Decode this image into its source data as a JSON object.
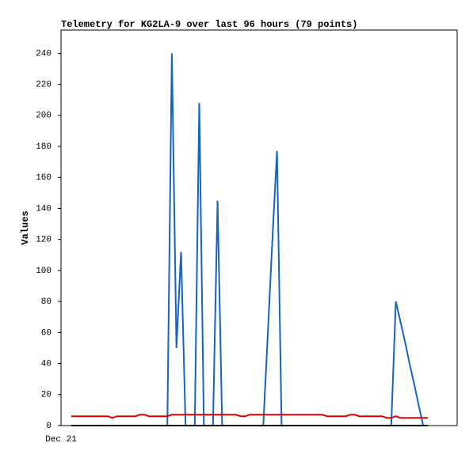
{
  "chart_data": {
    "type": "line",
    "title": "Telemetry for KG2LA-9 over last 96 hours (79 points)",
    "y_label": "Values",
    "categories": [
      "Dec 21",
      null,
      null,
      null,
      null,
      null,
      null,
      null,
      null,
      null,
      null,
      null,
      null,
      null,
      null,
      null,
      null,
      null,
      null,
      null,
      null,
      null,
      null,
      null,
      null,
      null,
      null,
      null,
      null,
      null,
      null,
      null,
      null,
      null,
      null,
      null,
      null,
      null,
      null,
      null,
      null,
      null,
      null,
      null,
      null,
      null,
      null,
      null,
      null,
      null,
      null,
      null,
      null,
      null,
      null,
      null,
      null,
      null,
      null,
      null,
      null,
      null,
      null,
      null,
      null,
      null,
      null,
      null,
      null,
      null,
      null,
      null,
      null,
      null,
      null,
      null,
      null,
      null,
      null
    ],
    "series": [
      {
        "color": "#1565c0",
        "values": [
          0,
          0,
          0,
          0,
          0,
          0,
          0,
          0,
          0,
          0,
          0,
          0,
          0,
          0,
          0,
          0,
          0,
          0,
          0,
          0,
          0,
          0,
          240,
          50,
          112,
          0,
          0,
          0,
          208,
          0,
          0,
          0,
          145,
          0,
          0,
          0,
          0,
          0,
          0,
          0,
          0,
          0,
          0,
          60,
          120,
          177,
          0,
          0,
          0,
          0,
          0,
          0,
          0,
          0,
          0,
          0,
          0,
          0,
          0,
          0,
          0,
          0,
          0,
          0,
          0,
          0,
          0,
          0,
          0,
          0,
          0,
          80,
          67,
          54,
          40,
          27,
          13,
          0,
          0
        ]
      },
      {
        "color": "#e00000",
        "values": [
          6,
          6,
          6,
          6,
          6,
          6,
          6,
          6,
          6,
          5,
          6,
          6,
          6,
          6,
          6,
          7,
          7,
          6,
          6,
          6,
          6,
          6,
          7,
          7,
          7,
          7,
          7,
          7,
          7,
          7,
          7,
          7,
          7,
          7,
          7,
          7,
          7,
          6,
          6,
          7,
          7,
          7,
          7,
          7,
          7,
          7,
          7,
          7,
          7,
          7,
          7,
          7,
          7,
          7,
          7,
          7,
          6,
          6,
          6,
          6,
          6,
          7,
          7,
          6,
          6,
          6,
          6,
          6,
          6,
          5,
          5,
          6,
          5,
          5,
          5,
          5,
          5,
          5,
          5
        ]
      },
      {
        "color": "#000000",
        "values": [
          0,
          0,
          0,
          0,
          0,
          0,
          0,
          0,
          0,
          0,
          0,
          0,
          0,
          0,
          0,
          0,
          0,
          0,
          0,
          0,
          0,
          0,
          0,
          0,
          0,
          0,
          0,
          0,
          0,
          0,
          0,
          0,
          0,
          0,
          0,
          0,
          0,
          0,
          0,
          0,
          0,
          0,
          0,
          0,
          0,
          0,
          0,
          0,
          0,
          0,
          0,
          0,
          0,
          0,
          0,
          0,
          0,
          0,
          0,
          0,
          0,
          0,
          0,
          0,
          0,
          0,
          0,
          0,
          0,
          0,
          0,
          0,
          0,
          0,
          0,
          0,
          0,
          0,
          0
        ]
      }
    ],
    "ylim": [
      0,
      255
    ],
    "yticks": [
      0,
      20,
      40,
      60,
      80,
      100,
      120,
      140,
      160,
      180,
      200,
      220,
      240
    ]
  }
}
